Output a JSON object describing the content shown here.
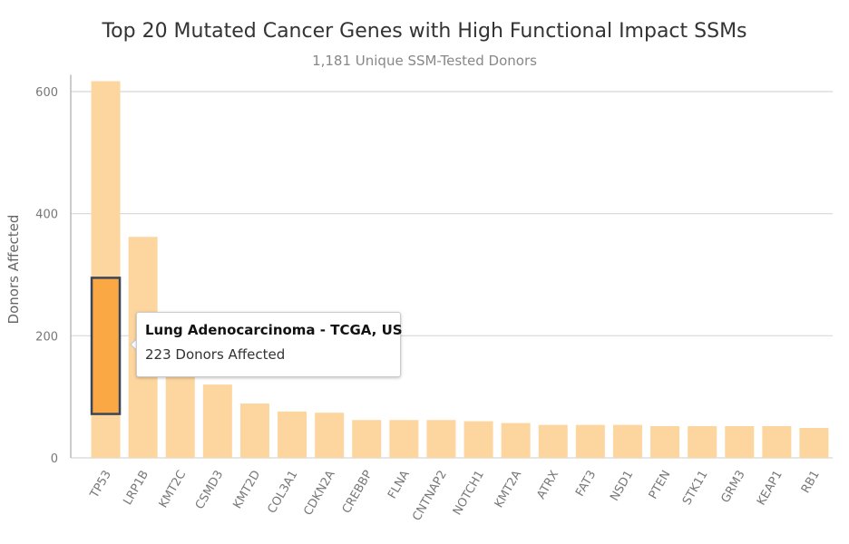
{
  "chart_data": {
    "type": "bar",
    "title": "Top 20 Mutated Cancer Genes with High Functional Impact SSMs",
    "subtitle": "1,181 Unique SSM-Tested Donors",
    "xlabel": "",
    "ylabel": "Donors Affected",
    "ylim": [
      0,
      620
    ],
    "yticks": [
      0,
      200,
      400,
      600
    ],
    "grid": true,
    "categories": [
      "TP53",
      "LRP1B",
      "KMT2C",
      "CSMD3",
      "KMT2D",
      "COL3A1",
      "CDKN2A",
      "CREBBP",
      "FLNA",
      "CNTNAP2",
      "NOTCH1",
      "KMT2A",
      "ATRX",
      "FAT3",
      "NSD1",
      "PTEN",
      "STK11",
      "GRM3",
      "KEAP1",
      "RB1"
    ],
    "values": [
      617,
      362,
      140,
      120,
      89,
      76,
      74,
      62,
      62,
      62,
      60,
      57,
      54,
      54,
      54,
      52,
      52,
      52,
      52,
      49
    ],
    "bar_color": "#fdd59f",
    "highlight": {
      "category": "TP53",
      "value": 223,
      "color": "#f9a843",
      "border_color": "#3a4558"
    }
  },
  "tooltip": {
    "title": "Lung Adenocarcinoma - TCGA, US",
    "value_text": "223 Donors Affected"
  },
  "colors": {
    "grid": "#d8d8d8",
    "axis_text": "#666666",
    "tick_text": "#777777"
  }
}
